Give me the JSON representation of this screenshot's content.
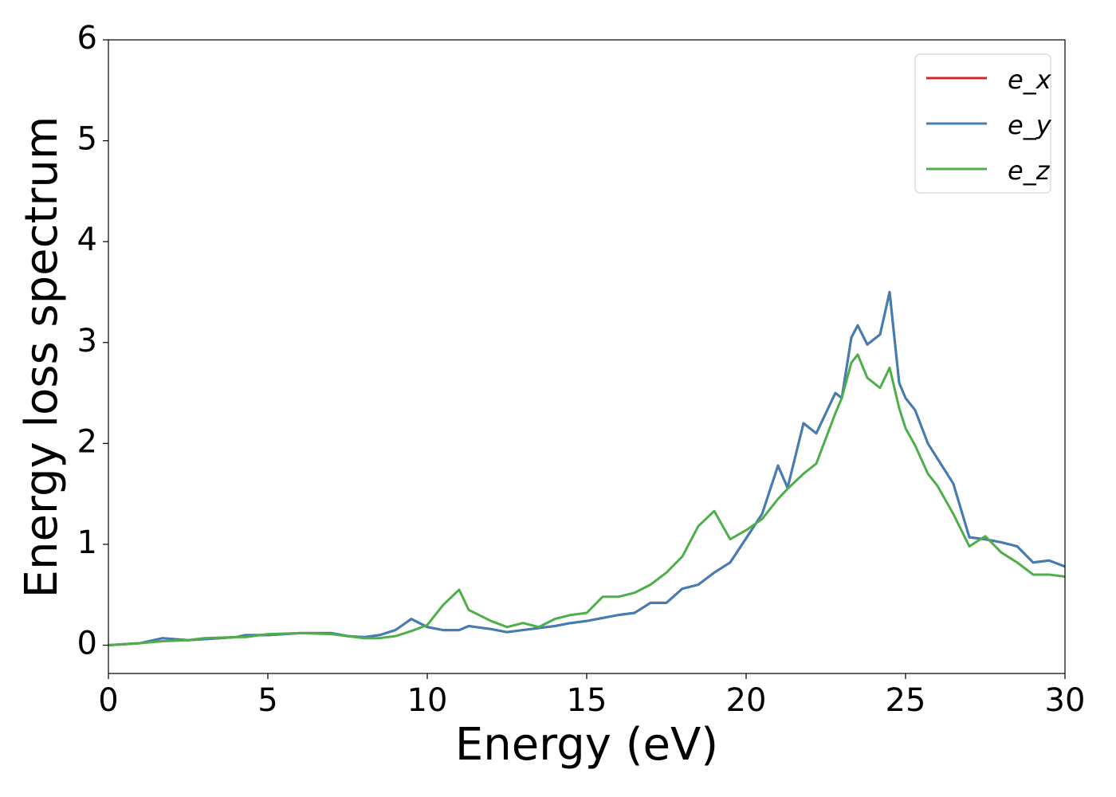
{
  "chart_data": {
    "type": "line",
    "xlabel": "Energy (eV)",
    "ylabel": "Energy loss spectrum",
    "x": [
      0,
      1,
      1.7,
      2.5,
      3,
      4,
      4.3,
      5,
      6,
      7,
      7.5,
      8,
      8.5,
      9,
      9.5,
      10,
      10.5,
      11,
      11.3,
      12,
      12.5,
      13,
      13.5,
      14,
      14.5,
      15,
      15.5,
      16,
      16.5,
      17,
      17.5,
      18,
      18.5,
      19,
      19.5,
      20,
      20.5,
      21,
      21.3,
      21.8,
      22.2,
      22.5,
      22.8,
      23,
      23.3,
      23.5,
      23.8,
      24.2,
      24.5,
      24.8,
      25,
      25.3,
      25.7,
      26,
      26.5,
      27,
      27.5,
      28,
      28.5,
      29,
      29.5,
      30
    ],
    "series": [
      {
        "name": "e_x",
        "color": "#d62728",
        "values": [
          0,
          0.02,
          0.07,
          0.05,
          0.06,
          0.08,
          0.1,
          0.1,
          0.12,
          0.12,
          0.09,
          0.08,
          0.1,
          0.15,
          0.26,
          0.18,
          0.15,
          0.15,
          0.19,
          0.16,
          0.13,
          0.15,
          0.17,
          0.19,
          0.22,
          0.24,
          0.27,
          0.3,
          0.32,
          0.42,
          0.42,
          0.56,
          0.6,
          0.72,
          0.82,
          1.06,
          1.3,
          1.78,
          1.56,
          2.2,
          2.1,
          2.3,
          2.5,
          2.45,
          3.05,
          3.17,
          2.98,
          3.08,
          3.5,
          2.6,
          2.45,
          2.33,
          2.0,
          1.85,
          1.6,
          1.07,
          1.05,
          1.02,
          0.98,
          0.82,
          0.84,
          0.78
        ]
      },
      {
        "name": "e_y",
        "color": "#3f7fb5",
        "values": [
          0,
          0.02,
          0.07,
          0.05,
          0.06,
          0.08,
          0.1,
          0.1,
          0.12,
          0.12,
          0.09,
          0.08,
          0.1,
          0.15,
          0.26,
          0.18,
          0.15,
          0.15,
          0.19,
          0.16,
          0.13,
          0.15,
          0.17,
          0.19,
          0.22,
          0.24,
          0.27,
          0.3,
          0.32,
          0.42,
          0.42,
          0.56,
          0.6,
          0.72,
          0.82,
          1.06,
          1.3,
          1.78,
          1.56,
          2.2,
          2.1,
          2.3,
          2.5,
          2.45,
          3.05,
          3.17,
          2.98,
          3.08,
          3.5,
          2.6,
          2.45,
          2.33,
          2.0,
          1.85,
          1.6,
          1.07,
          1.05,
          1.02,
          0.98,
          0.82,
          0.84,
          0.78
        ]
      },
      {
        "name": "e_z",
        "color": "#4daf4a",
        "values": [
          0,
          0.02,
          0.04,
          0.05,
          0.07,
          0.08,
          0.08,
          0.11,
          0.12,
          0.11,
          0.09,
          0.07,
          0.07,
          0.09,
          0.14,
          0.2,
          0.4,
          0.55,
          0.35,
          0.24,
          0.18,
          0.22,
          0.18,
          0.26,
          0.3,
          0.32,
          0.48,
          0.48,
          0.52,
          0.6,
          0.72,
          0.88,
          1.18,
          1.33,
          1.05,
          1.14,
          1.25,
          1.45,
          1.55,
          1.7,
          1.8,
          2.05,
          2.3,
          2.45,
          2.8,
          2.88,
          2.65,
          2.55,
          2.75,
          2.35,
          2.15,
          1.98,
          1.7,
          1.58,
          1.3,
          0.98,
          1.08,
          0.92,
          0.82,
          0.7,
          0.7,
          0.68
        ]
      }
    ],
    "xlim": [
      0,
      30
    ],
    "xticks": [
      0,
      5,
      10,
      15,
      20,
      25,
      30
    ],
    "ylim": [
      -0.28,
      6
    ],
    "yticks": [
      0,
      1,
      2,
      3,
      4,
      5,
      6
    ],
    "grid": false,
    "legend": "upper right"
  }
}
